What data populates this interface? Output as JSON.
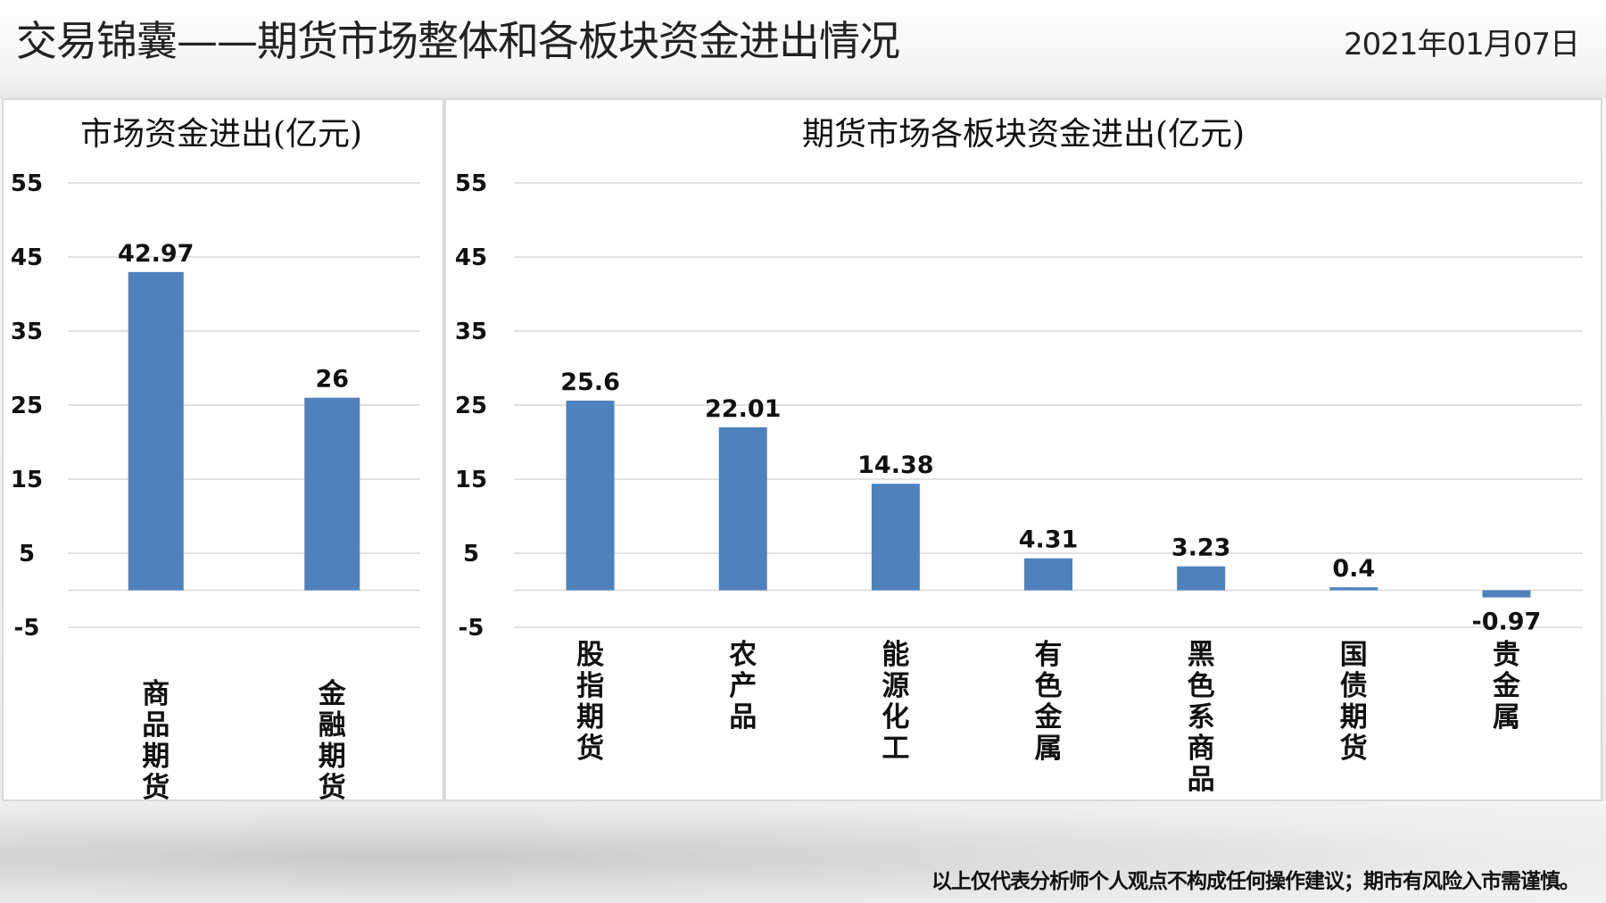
{
  "page": {
    "title": "交易锦囊——期货市场整体和各板块资金进出情况",
    "date": "2021年01月07日",
    "disclaimer": "以上仅代表分析师个人观点不构成任何操作建议；期市有风险入市需谨慎。"
  },
  "colors": {
    "bar": "#4f81bd",
    "grid": "#d9d9d9",
    "text": "#111111"
  },
  "chart_data": [
    {
      "type": "bar",
      "title": "市场资金进出(亿元)",
      "categories": [
        "商品期货",
        "金融期货"
      ],
      "values": [
        42.97,
        26
      ],
      "value_labels": [
        "42.97",
        "26"
      ],
      "yticks": [
        "55",
        "45",
        "35",
        "25",
        "15",
        "5",
        "-5"
      ],
      "ylim": [
        -5,
        55
      ],
      "grid": true
    },
    {
      "type": "bar",
      "title": "期货市场各板块资金进出(亿元)",
      "categories": [
        "股指期货",
        "农产品",
        "能源化工",
        "有色金属",
        "黑色系商品",
        "国债期货",
        "贵金属"
      ],
      "values": [
        25.6,
        22.01,
        14.38,
        4.31,
        3.23,
        0.4,
        -0.97
      ],
      "value_labels": [
        "25.6",
        "22.01",
        "14.38",
        "4.31",
        "3.23",
        "0.4",
        "-0.97"
      ],
      "yticks": [
        "55",
        "45",
        "35",
        "25",
        "15",
        "5",
        "-5"
      ],
      "ylim": [
        -5,
        55
      ],
      "grid": true
    }
  ]
}
